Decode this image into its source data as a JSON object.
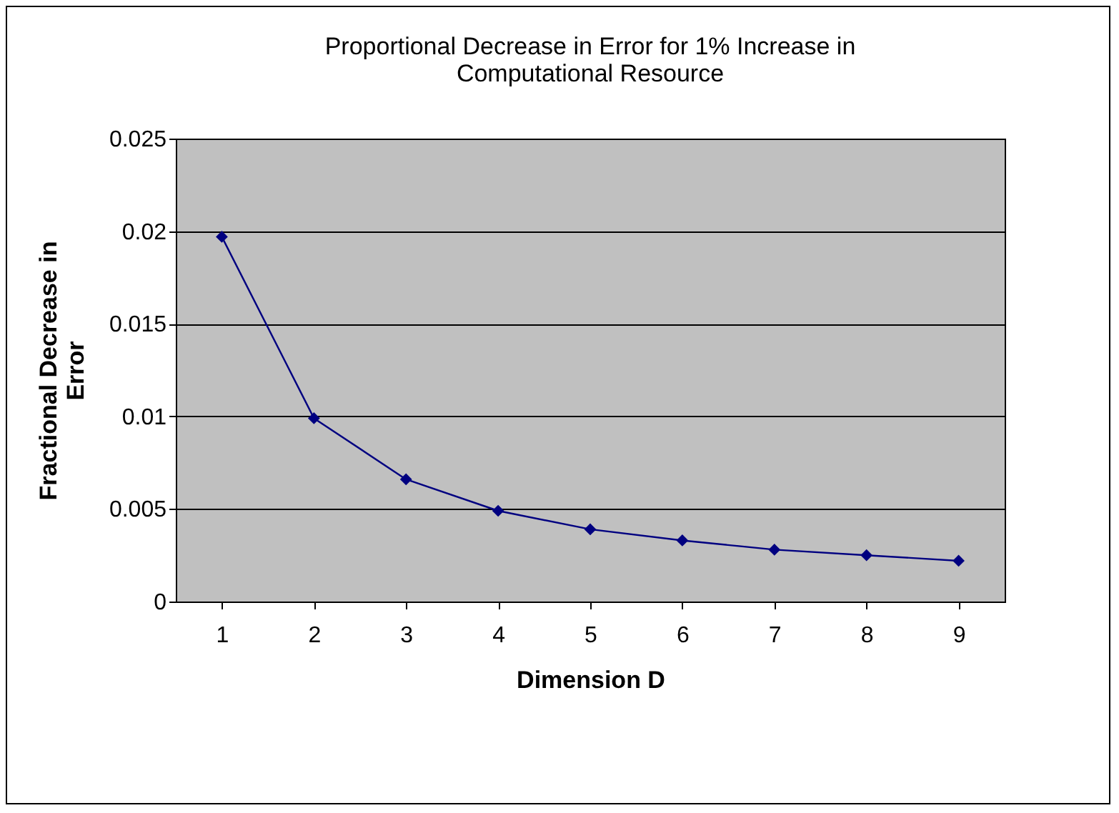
{
  "chart_data": {
    "type": "line",
    "title": "Proportional Decrease in Error for 1% Increase in Computational Resource",
    "xlabel": "Dimension D",
    "ylabel": "Fractional Decrease in Error",
    "categories": [
      "1",
      "2",
      "3",
      "4",
      "5",
      "6",
      "7",
      "8",
      "9"
    ],
    "series": [
      {
        "color": "#000080",
        "values": [
          0.0197,
          0.0099,
          0.0066,
          0.0049,
          0.0039,
          0.0033,
          0.0028,
          0.0025,
          0.0022
        ]
      }
    ],
    "ylim": [
      0,
      0.025
    ],
    "yticks": [
      0,
      0.005,
      0.01,
      0.015,
      0.02,
      0.025
    ],
    "grid": "y",
    "marker": "diamond",
    "line_style": "solid"
  }
}
